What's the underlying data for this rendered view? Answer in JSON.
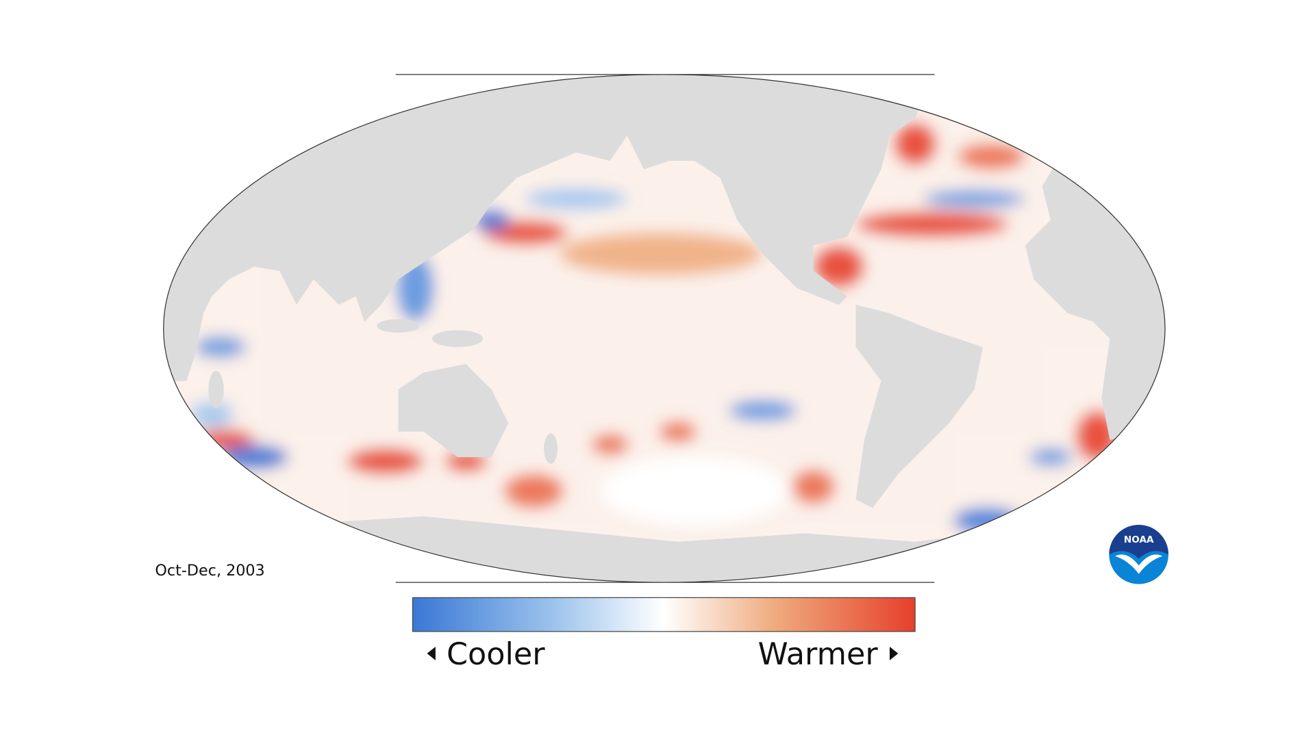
{
  "map": {
    "period_label": "Oct-Dec, 2003",
    "legend": {
      "low_label": "Cooler",
      "high_label": "Warmer"
    }
  },
  "logo": {
    "text": "NOAA"
  }
}
